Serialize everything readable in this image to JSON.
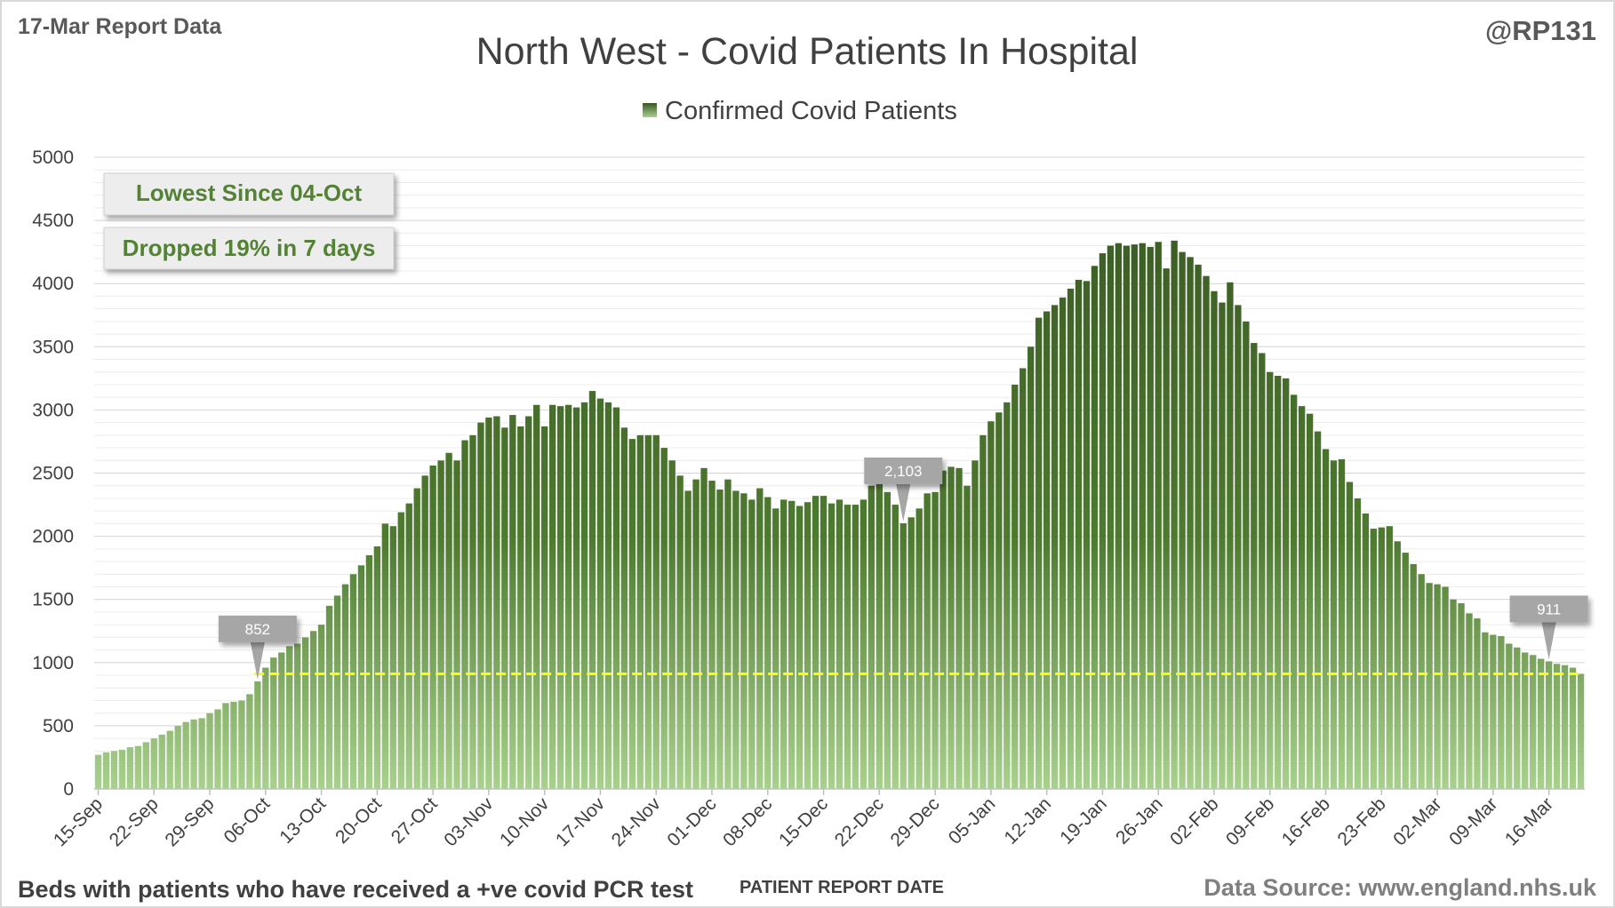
{
  "header": {
    "report_label": "17-Mar Report Data",
    "handle": "@RP131"
  },
  "footer": {
    "description": "Beds with patients who have received a +ve covid PCR test",
    "source": "Data Source: www.england.nhs.uk"
  },
  "notes": {
    "lowest": "Lowest Since 04-Oct",
    "drop": "Dropped 19% in 7 days"
  },
  "colors": {
    "bar_top": "#385723",
    "bar_bottom": "#a9d18e",
    "reference_line": "#ffff00",
    "note_text": "#548235",
    "callout": "#a6a6a6"
  },
  "chart_data": {
    "type": "bar",
    "title": "North West - Covid Patients In Hospital",
    "xlabel": "PATIENT REPORT DATE",
    "ylabel": "",
    "ylim": [
      0,
      5000
    ],
    "yticks": [
      0,
      500,
      1000,
      1500,
      2000,
      2500,
      3000,
      3500,
      4000,
      4500,
      5000
    ],
    "grid": true,
    "legend": "top-center",
    "x_start": "15-Sep",
    "x_end": "17-Mar",
    "xtick_labels": [
      "15-Sep",
      "22-Sep",
      "29-Sep",
      "06-Oct",
      "13-Oct",
      "20-Oct",
      "27-Oct",
      "03-Nov",
      "10-Nov",
      "17-Nov",
      "24-Nov",
      "01-Dec",
      "08-Dec",
      "15-Dec",
      "22-Dec",
      "29-Dec",
      "05-Jan",
      "12-Jan",
      "19-Jan",
      "26-Jan",
      "02-Feb",
      "09-Feb",
      "16-Feb",
      "23-Feb",
      "02-Mar",
      "09-Mar",
      "16-Mar"
    ],
    "series": [
      {
        "name": "Confirmed Covid Patients",
        "values": [
          270,
          290,
          300,
          310,
          330,
          340,
          370,
          400,
          430,
          460,
          500,
          530,
          550,
          560,
          600,
          630,
          680,
          690,
          700,
          750,
          852,
          960,
          1040,
          1080,
          1130,
          1150,
          1200,
          1250,
          1300,
          1450,
          1530,
          1620,
          1700,
          1770,
          1850,
          1920,
          2100,
          2080,
          2190,
          2260,
          2380,
          2480,
          2560,
          2600,
          2660,
          2600,
          2760,
          2800,
          2900,
          2940,
          2950,
          2860,
          2960,
          2870,
          2950,
          3040,
          2870,
          3040,
          3030,
          3040,
          3020,
          3060,
          3150,
          3090,
          3060,
          3020,
          2860,
          2770,
          2800,
          2800,
          2800,
          2700,
          2600,
          2480,
          2360,
          2450,
          2540,
          2440,
          2370,
          2450,
          2360,
          2340,
          2290,
          2380,
          2310,
          2220,
          2290,
          2280,
          2240,
          2270,
          2320,
          2320,
          2260,
          2290,
          2250,
          2250,
          2290,
          2400,
          2450,
          2350,
          2250,
          2103,
          2150,
          2220,
          2340,
          2350,
          2520,
          2550,
          2540,
          2400,
          2600,
          2800,
          2910,
          2980,
          3060,
          3200,
          3330,
          3500,
          3730,
          3780,
          3830,
          3890,
          3960,
          4030,
          4020,
          4140,
          4240,
          4300,
          4320,
          4300,
          4310,
          4320,
          4290,
          4330,
          4120,
          4340,
          4250,
          4210,
          4150,
          4060,
          3940,
          3850,
          4010,
          3830,
          3700,
          3530,
          3450,
          3300,
          3270,
          3250,
          3120,
          3030,
          2970,
          2830,
          2690,
          2600,
          2610,
          2430,
          2300,
          2180,
          2060,
          2070,
          2080,
          1960,
          1870,
          1780,
          1700,
          1630,
          1620,
          1600,
          1500,
          1470,
          1390,
          1350,
          1240,
          1220,
          1210,
          1150,
          1120,
          1080,
          1060,
          1030,
          1010,
          990,
          980,
          960,
          911
        ]
      }
    ],
    "reference_line": {
      "value": 911,
      "label": "Lowest Since 04-Oct"
    },
    "annotations": [
      {
        "label": "852",
        "index": 20
      },
      {
        "label": "2,103",
        "index": 101
      },
      {
        "label": "911",
        "index": 182
      }
    ]
  }
}
